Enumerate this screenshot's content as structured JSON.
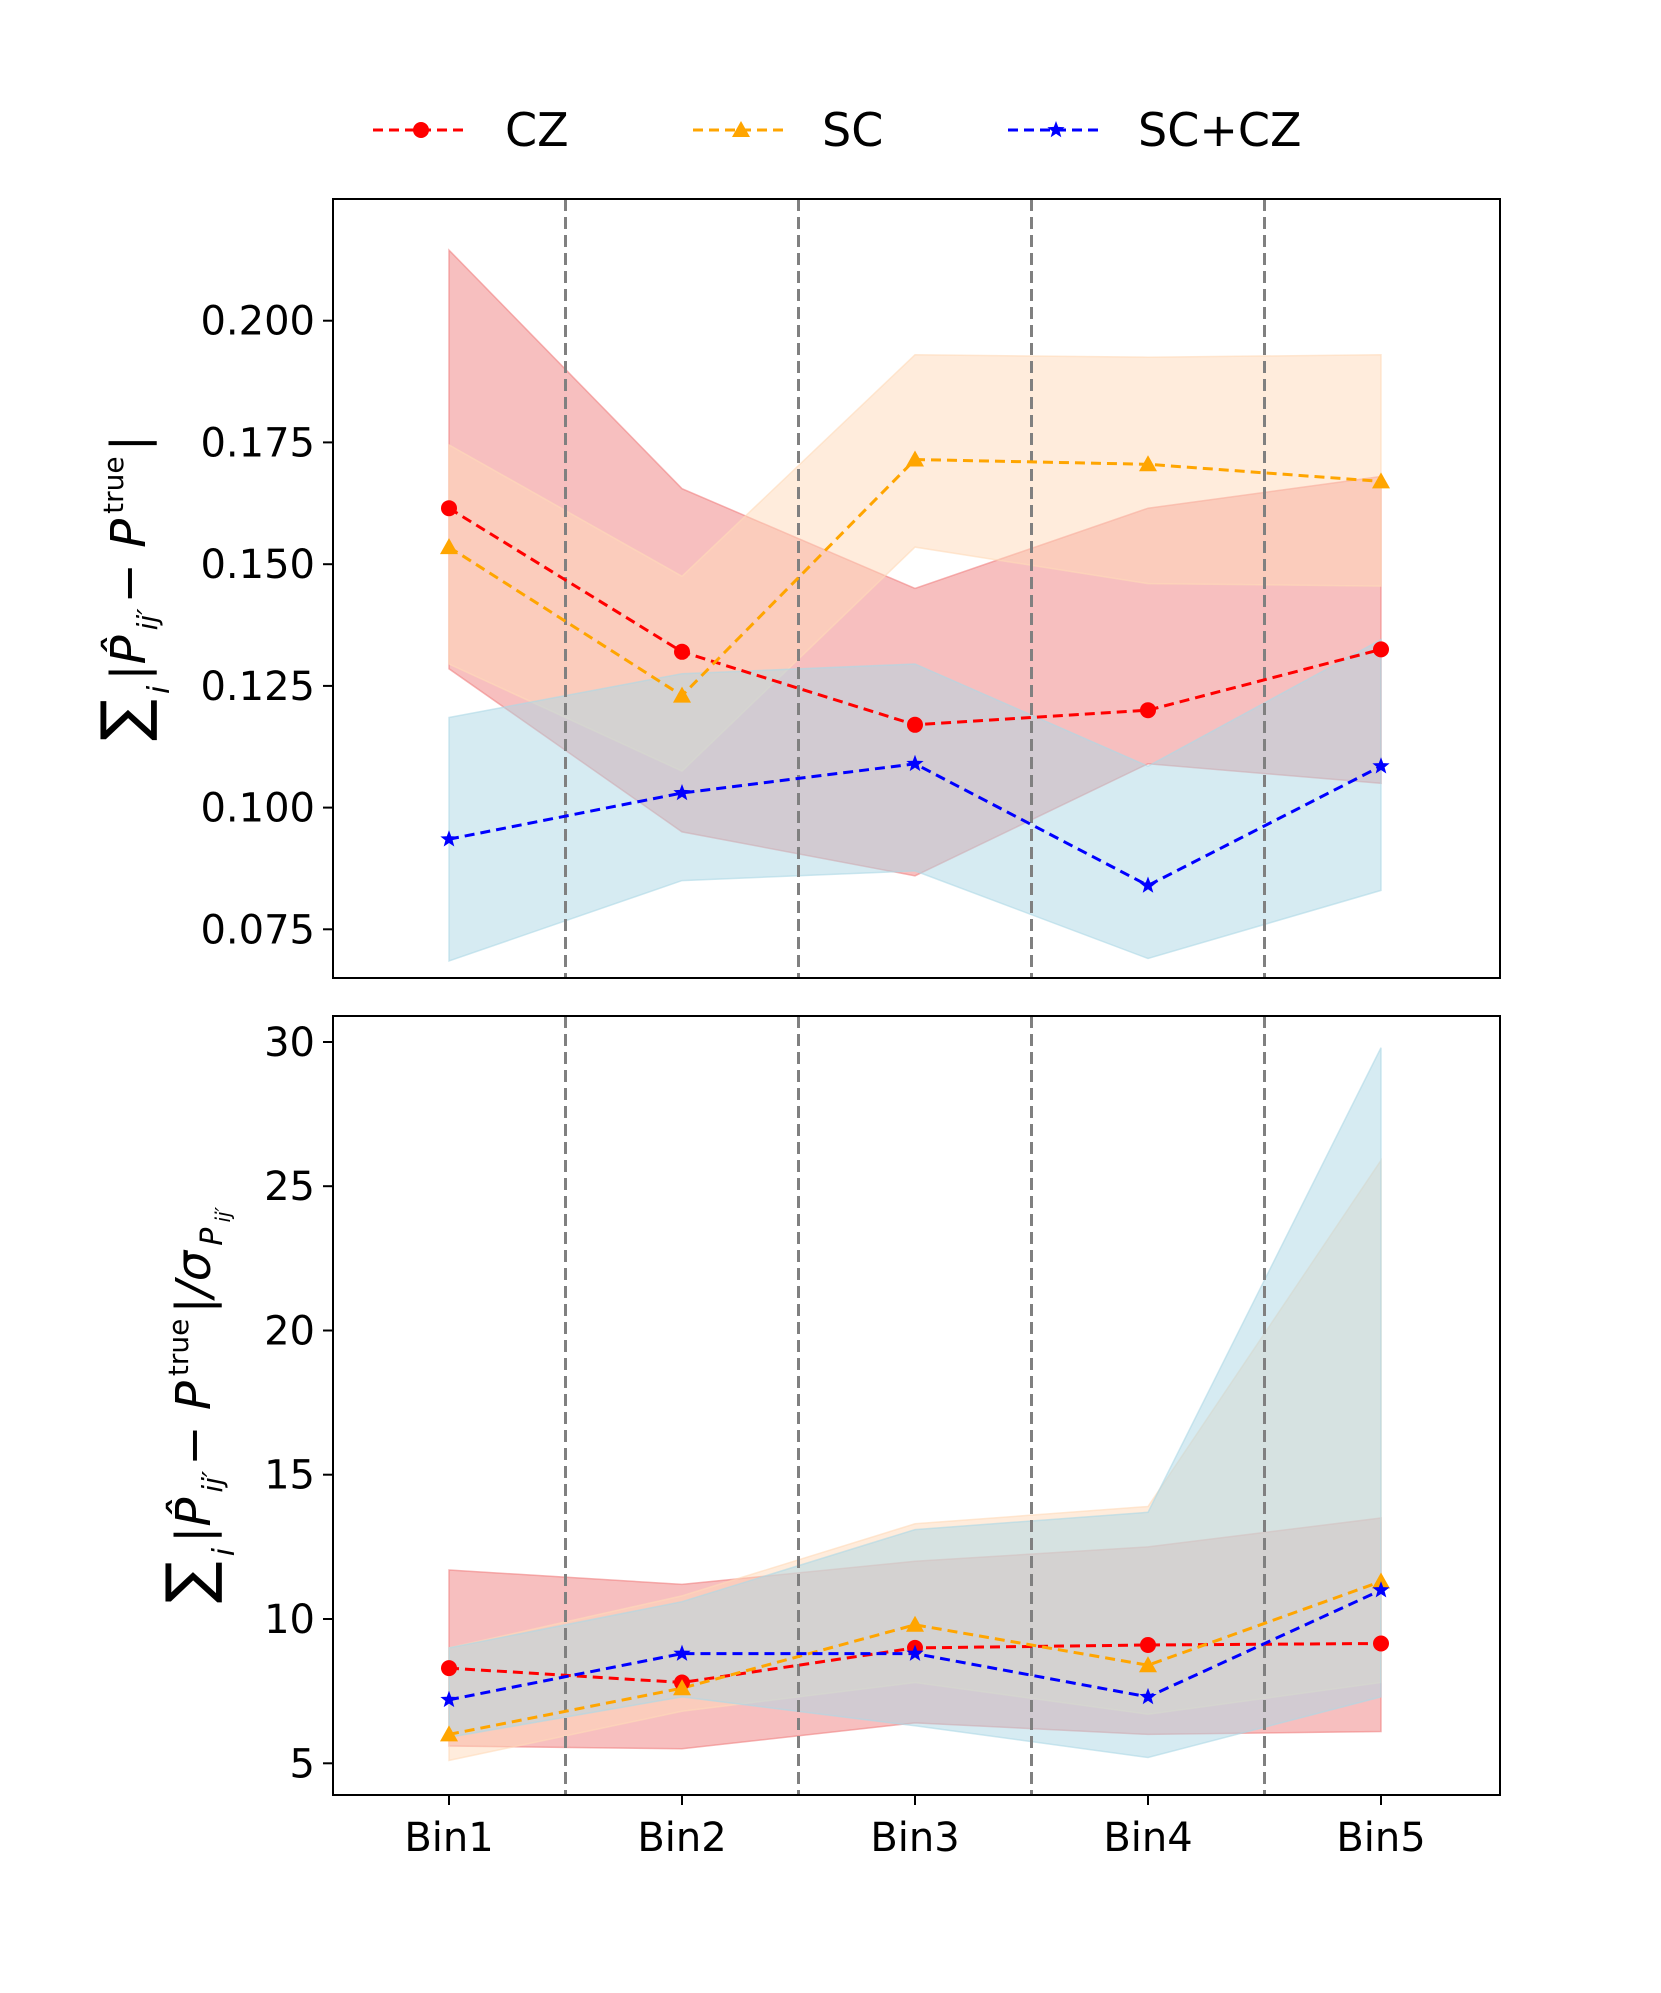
{
  "colors": {
    "CZ": "#ff0000",
    "SC": "#ffa500",
    "SC+CZ": "#0000ff",
    "CZ_band": "#f08080",
    "SC_band": "#ffdab9",
    "SCCZ_band": "#add8e6",
    "divider": "#808080"
  },
  "legend": [
    {
      "name": "CZ",
      "marker": "circle"
    },
    {
      "name": "SC",
      "marker": "triangle"
    },
    {
      "name": "SC+CZ",
      "marker": "star"
    }
  ],
  "chart_data": [
    {
      "type": "line",
      "panel": "top",
      "ylabel": "Σ_i |P̂_ij′ − P_ij′^true|",
      "ylabel_parts": {
        "sum": "∑",
        "sub_i": "i",
        "body": "|P̂",
        "sub_ijp": "ij′",
        "minus": " − P",
        "sup_true": "true",
        "close": "|"
      },
      "categories": [
        "Bin1",
        "Bin2",
        "Bin3",
        "Bin4",
        "Bin5"
      ],
      "ylim": [
        0.065,
        0.225
      ],
      "yticks": [
        0.075,
        0.1,
        0.125,
        0.15,
        0.175,
        0.2
      ],
      "ytick_labels": [
        "0.075",
        "0.100",
        "0.125",
        "0.150",
        "0.175",
        "0.200"
      ],
      "grid": false,
      "series": [
        {
          "name": "CZ",
          "values": [
            0.1615,
            0.132,
            0.117,
            0.12,
            0.1325
          ],
          "band_lower": [
            0.1285,
            0.095,
            0.086,
            0.109,
            0.105
          ],
          "band_upper": [
            0.2145,
            0.1655,
            0.145,
            0.1615,
            0.168
          ]
        },
        {
          "name": "SC",
          "values": [
            0.1535,
            0.123,
            0.1715,
            0.1705,
            0.167
          ],
          "band_lower": [
            0.1295,
            0.1075,
            0.1535,
            0.146,
            0.1455
          ],
          "band_upper": [
            0.1745,
            0.1475,
            0.193,
            0.1925,
            0.193
          ]
        },
        {
          "name": "SC+CZ",
          "values": [
            0.0935,
            0.103,
            0.109,
            0.084,
            0.1085
          ],
          "band_lower": [
            0.0685,
            0.085,
            0.087,
            0.069,
            0.083
          ],
          "band_upper": [
            0.1185,
            0.1275,
            0.1295,
            0.1085,
            0.1345
          ]
        }
      ]
    },
    {
      "type": "line",
      "panel": "bottom",
      "ylabel": "Σ_i |P̂_ij′ − P_ij′^true| / σ_{P_ij′}",
      "ylabel_parts": {
        "sum": "∑",
        "sub_i": "i",
        "body": "|P̂",
        "sub_ijp": "ij′",
        "minus": " − P",
        "sup_true": "true",
        "close": "|/σ",
        "sub_p": "P",
        "sub_p_ijp": "ij′"
      },
      "xlabel": "",
      "categories": [
        "Bin1",
        "Bin2",
        "Bin3",
        "Bin4",
        "Bin5"
      ],
      "ylim": [
        3.9,
        30.9
      ],
      "yticks": [
        5,
        10,
        15,
        20,
        25,
        30
      ],
      "ytick_labels": [
        "5",
        "10",
        "15",
        "20",
        "25",
        "30"
      ],
      "grid": false,
      "series": [
        {
          "name": "CZ",
          "values": [
            8.3,
            7.8,
            9.0,
            9.1,
            9.15
          ],
          "band_lower": [
            5.6,
            5.5,
            6.4,
            6.0,
            6.1
          ],
          "band_upper": [
            11.7,
            11.2,
            12.0,
            12.5,
            13.5
          ]
        },
        {
          "name": "SC",
          "values": [
            6.0,
            7.6,
            9.8,
            8.4,
            11.3
          ],
          "band_lower": [
            5.1,
            6.8,
            7.8,
            6.7,
            7.8
          ],
          "band_upper": [
            9.0,
            10.8,
            13.3,
            13.9,
            25.9
          ]
        },
        {
          "name": "SC+CZ",
          "values": [
            7.2,
            8.8,
            8.8,
            7.3,
            11.0
          ],
          "band_lower": [
            5.9,
            7.3,
            6.3,
            5.2,
            7.3
          ],
          "band_upper": [
            9.0,
            10.6,
            13.1,
            13.7,
            29.8
          ]
        }
      ]
    }
  ]
}
